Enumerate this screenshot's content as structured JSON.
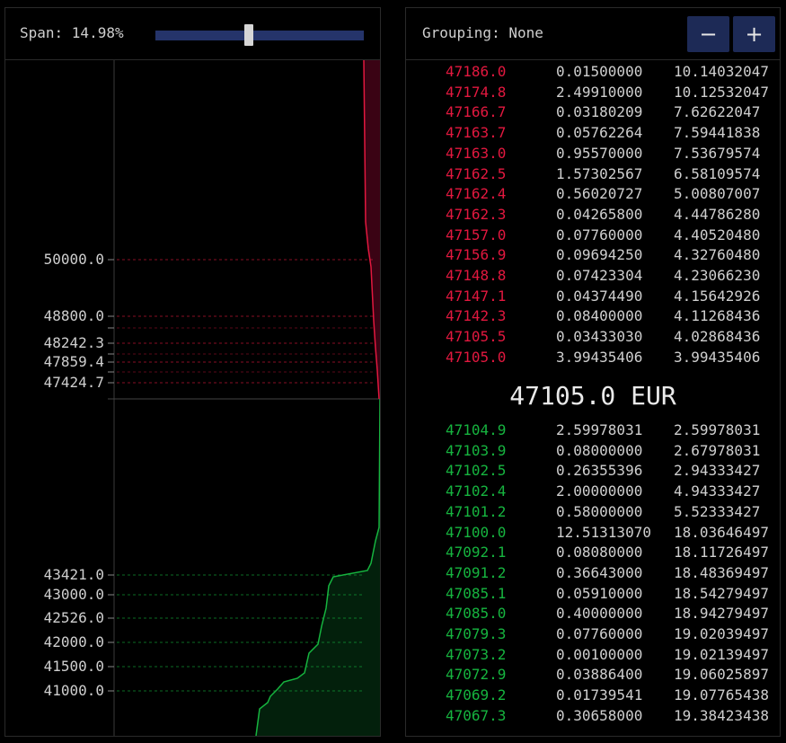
{
  "depth_chart": {
    "span_label": "Span: 14.98%",
    "span_percent": 14.98,
    "ask_price_labels": [
      "50000.0",
      "48800.0",
      "48242.3",
      "47859.4",
      "47424.7"
    ],
    "bid_price_labels": [
      "43421.0",
      "43000.0",
      "42526.0",
      "42000.0",
      "41500.0",
      "41000.0"
    ],
    "colors": {
      "ask": "#e2183f",
      "ask_fill": "#3a0314",
      "bid": "#16b43f",
      "bid_fill": "#03200c",
      "slider": "#25346a"
    }
  },
  "order_book": {
    "grouping_label": "Grouping: None",
    "minus_label": "−",
    "plus_label": "+",
    "mid_price": "47105.0 EUR",
    "asks": [
      {
        "price": "47186.0",
        "amount": "0.01500000",
        "total": "10.14032047"
      },
      {
        "price": "47174.8",
        "amount": "2.49910000",
        "total": "10.12532047"
      },
      {
        "price": "47166.7",
        "amount": "0.03180209",
        "total": "7.62622047"
      },
      {
        "price": "47163.7",
        "amount": "0.05762264",
        "total": "7.59441838"
      },
      {
        "price": "47163.0",
        "amount": "0.95570000",
        "total": "7.53679574"
      },
      {
        "price": "47162.5",
        "amount": "1.57302567",
        "total": "6.58109574"
      },
      {
        "price": "47162.4",
        "amount": "0.56020727",
        "total": "5.00807007"
      },
      {
        "price": "47162.3",
        "amount": "0.04265800",
        "total": "4.44786280"
      },
      {
        "price": "47157.0",
        "amount": "0.07760000",
        "total": "4.40520480"
      },
      {
        "price": "47156.9",
        "amount": "0.09694250",
        "total": "4.32760480"
      },
      {
        "price": "47148.8",
        "amount": "0.07423304",
        "total": "4.23066230"
      },
      {
        "price": "47147.1",
        "amount": "0.04374490",
        "total": "4.15642926"
      },
      {
        "price": "47142.3",
        "amount": "0.08400000",
        "total": "4.11268436"
      },
      {
        "price": "47105.5",
        "amount": "0.03433030",
        "total": "4.02868436"
      },
      {
        "price": "47105.0",
        "amount": "3.99435406",
        "total": "3.99435406"
      }
    ],
    "bids": [
      {
        "price": "47104.9",
        "amount": "2.59978031",
        "total": "2.59978031"
      },
      {
        "price": "47103.9",
        "amount": "0.08000000",
        "total": "2.67978031"
      },
      {
        "price": "47102.5",
        "amount": "0.26355396",
        "total": "2.94333427"
      },
      {
        "price": "47102.4",
        "amount": "2.00000000",
        "total": "4.94333427"
      },
      {
        "price": "47101.2",
        "amount": "0.58000000",
        "total": "5.52333427"
      },
      {
        "price": "47100.0",
        "amount": "12.51313070",
        "total": "18.03646497"
      },
      {
        "price": "47092.1",
        "amount": "0.08080000",
        "total": "18.11726497"
      },
      {
        "price": "47091.2",
        "amount": "0.36643000",
        "total": "18.48369497"
      },
      {
        "price": "47085.1",
        "amount": "0.05910000",
        "total": "18.54279497"
      },
      {
        "price": "47085.0",
        "amount": "0.40000000",
        "total": "18.94279497"
      },
      {
        "price": "47079.3",
        "amount": "0.07760000",
        "total": "19.02039497"
      },
      {
        "price": "47073.2",
        "amount": "0.00100000",
        "total": "19.02139497"
      },
      {
        "price": "47072.9",
        "amount": "0.03886400",
        "total": "19.06025897"
      },
      {
        "price": "47069.2",
        "amount": "0.01739541",
        "total": "19.07765438"
      },
      {
        "price": "47067.3",
        "amount": "0.30658000",
        "total": "19.38423438"
      }
    ]
  }
}
